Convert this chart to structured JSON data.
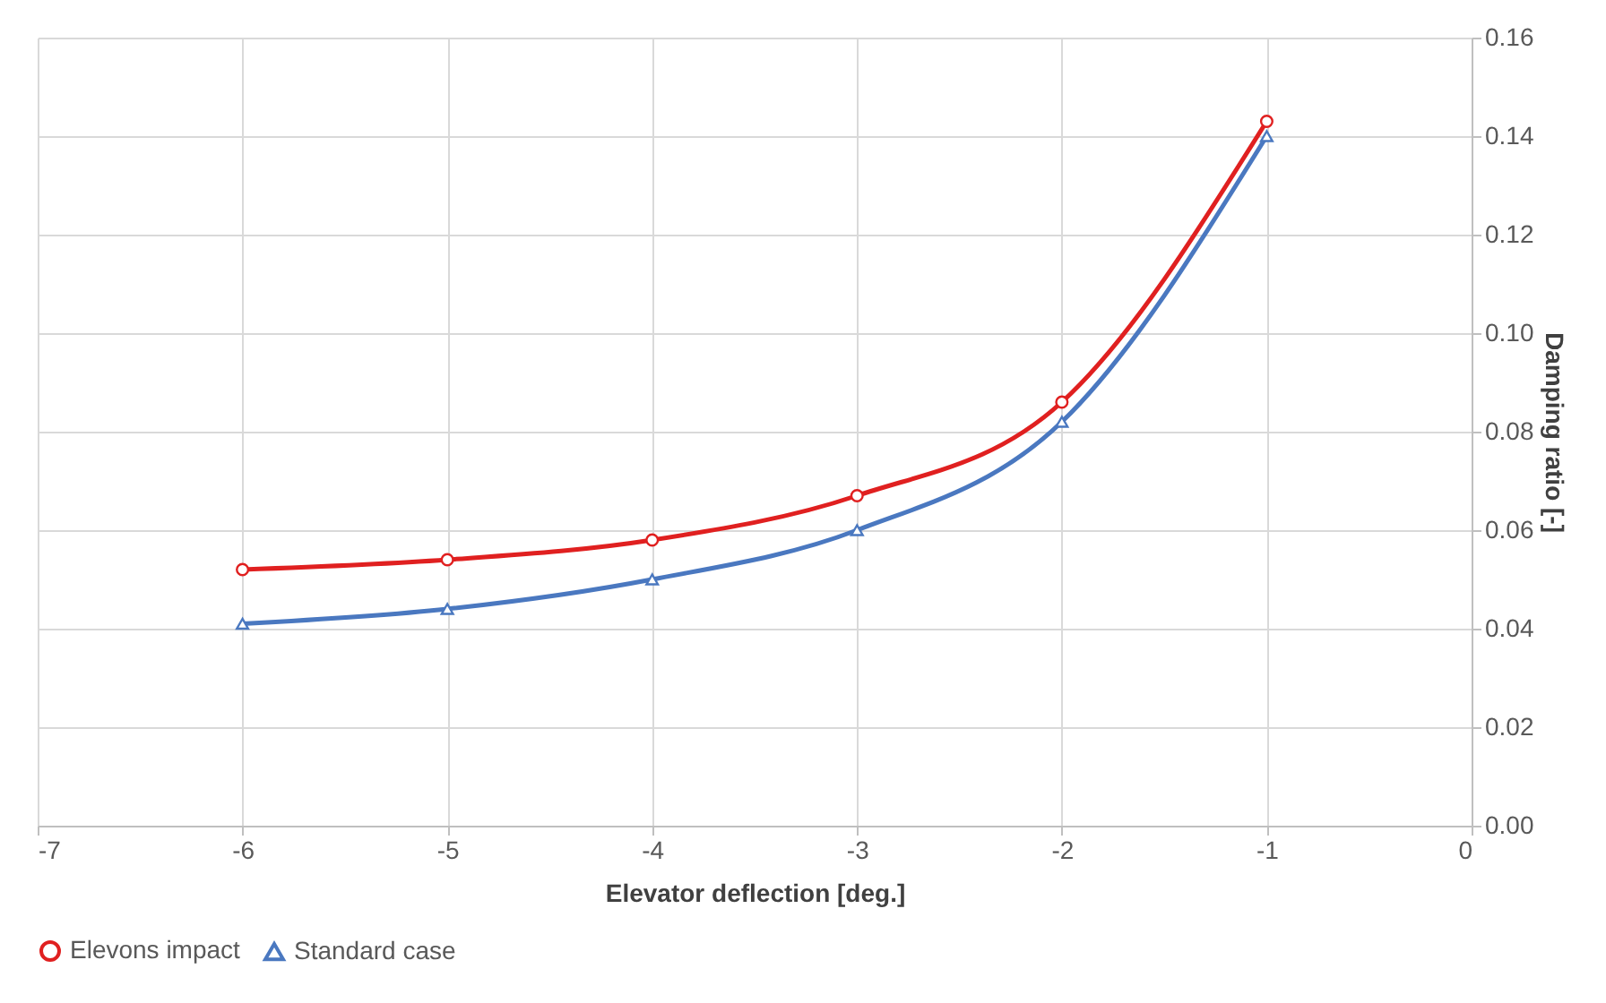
{
  "chart_data": {
    "type": "line",
    "xlabel": "Elevator deflection [deg.]",
    "ylabel": "Damping ratio [-]",
    "x": [
      -6,
      -5,
      -4,
      -3,
      -2,
      -1
    ],
    "series": [
      {
        "name": "Elevons impact",
        "color": "#e02020",
        "marker": "circle",
        "values": [
          0.052,
          0.054,
          0.058,
          0.067,
          0.086,
          0.143
        ]
      },
      {
        "name": "Standard case",
        "color": "#4a78c0",
        "marker": "triangle",
        "values": [
          0.041,
          0.044,
          0.05,
          0.06,
          0.082,
          0.14
        ]
      }
    ],
    "xlim": [
      -7,
      0
    ],
    "xticks": [
      -7,
      -6,
      -5,
      -4,
      -3,
      -2,
      -1,
      0
    ],
    "ylim": [
      0,
      0.16
    ],
    "yticks": [
      {
        "value": 0,
        "label": "0.00"
      },
      {
        "value": 0.02,
        "label": "0.02"
      },
      {
        "value": 0.04,
        "label": "0.04"
      },
      {
        "value": 0.06,
        "label": "0.06"
      },
      {
        "value": 0.08,
        "label": "0.08"
      },
      {
        "value": 0.1,
        "label": "0.10"
      },
      {
        "value": 0.12,
        "label": "0.12"
      },
      {
        "value": 0.14,
        "label": "0.14"
      },
      {
        "value": 0.16,
        "label": "0.16"
      }
    ],
    "grid": true,
    "legend": "bottom",
    "line_style": "solid"
  }
}
